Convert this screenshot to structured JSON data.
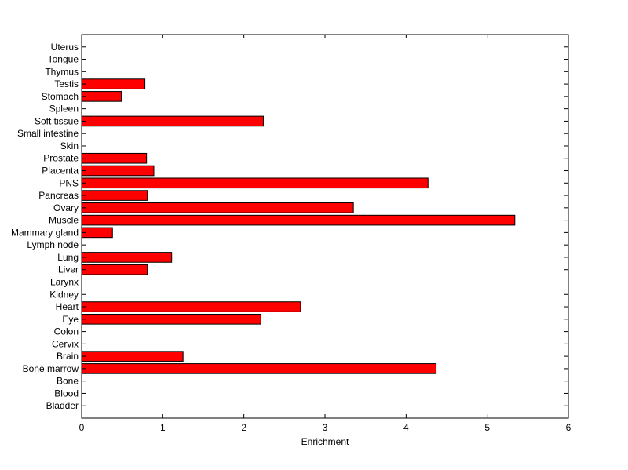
{
  "chart_data": {
    "type": "bar",
    "orientation": "horizontal",
    "title": "",
    "xlabel": "Enrichment",
    "ylabel": "",
    "xlim": [
      0,
      6
    ],
    "xticks": [
      0,
      1,
      2,
      3,
      4,
      5,
      6
    ],
    "categories": [
      "Bladder",
      "Blood",
      "Bone",
      "Bone marrow",
      "Brain",
      "Cervix",
      "Colon",
      "Eye",
      "Heart",
      "Kidney",
      "Larynx",
      "Liver",
      "Lung",
      "Lymph node",
      "Mammary gland",
      "Muscle",
      "Ovary",
      "Pancreas",
      "PNS",
      "Placenta",
      "Prostate",
      "Skin",
      "Small intestine",
      "Soft tissue",
      "Spleen",
      "Stomach",
      "Testis",
      "Thymus",
      "Tongue",
      "Uterus"
    ],
    "values": [
      0,
      0,
      0,
      4.37,
      1.25,
      0,
      0,
      2.21,
      2.7,
      0,
      0,
      0.81,
      1.11,
      0,
      0.38,
      5.34,
      3.35,
      0.81,
      4.27,
      0.89,
      0.8,
      0,
      0,
      2.24,
      0,
      0.49,
      0.78,
      0,
      0,
      0
    ],
    "bar_color": "#ff0000",
    "edge_color": "#000000",
    "grid": false,
    "legend": "none"
  }
}
